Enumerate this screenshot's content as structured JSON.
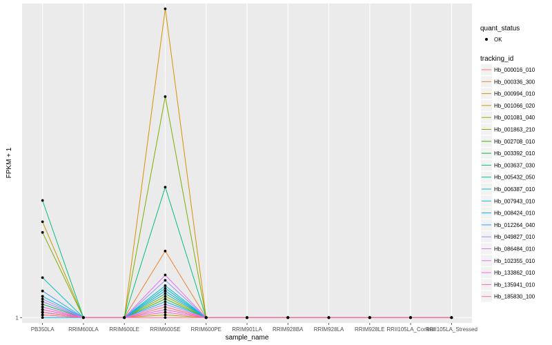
{
  "chart_data": {
    "type": "line",
    "xlabel": "sample_name",
    "ylabel": "FPKM + 1",
    "ylim": [
      0.9,
      6.9
    ],
    "y_ticks": [
      1
    ],
    "y_tick_labels": [
      "1"
    ],
    "grid": true,
    "legend_position": "right",
    "categories": [
      "PB350LA",
      "RRIM600LA",
      "RRIM600LE",
      "RRIM600SE",
      "RRIM600PE",
      "RRIM901LA",
      "RRIM928BA",
      "RRIM928LA",
      "RRIM928LE",
      "RRII105LA_Control",
      "RRII105LA_Stressed"
    ],
    "quant_status": {
      "title": "quant_status",
      "entries": [
        "OK"
      ]
    },
    "tracking_legend_title": "tracking_id",
    "series": [
      {
        "name": "Hb_000016_010",
        "color": "#F8766D",
        "values": [
          1.15,
          1,
          1,
          1.2,
          1,
          1,
          1,
          1,
          1,
          1,
          1
        ]
      },
      {
        "name": "Hb_000336_300",
        "color": "#EA8331",
        "values": [
          1.1,
          1,
          1,
          2.25,
          1,
          1,
          1,
          1,
          1,
          1,
          1
        ]
      },
      {
        "name": "Hb_000994_010",
        "color": "#D89000",
        "values": [
          1.05,
          1,
          1,
          6.8,
          1,
          1,
          1,
          1,
          1,
          1,
          1
        ]
      },
      {
        "name": "Hb_001066_020",
        "color": "#C09B00",
        "values": [
          2.8,
          1,
          1,
          1.05,
          1,
          1,
          1,
          1,
          1,
          1,
          1
        ]
      },
      {
        "name": "Hb_001081_040",
        "color": "#A3A500",
        "values": [
          1.2,
          1,
          1,
          1.4,
          1,
          1,
          1,
          1,
          1,
          1,
          1
        ]
      },
      {
        "name": "Hb_001863_210",
        "color": "#7CAE00",
        "values": [
          2.6,
          1,
          1,
          5.15,
          1,
          1,
          1,
          1,
          1,
          1,
          1
        ]
      },
      {
        "name": "Hb_002708_010",
        "color": "#39B600",
        "values": [
          1.1,
          1,
          1,
          1.35,
          1,
          1,
          1,
          1,
          1,
          1,
          1
        ]
      },
      {
        "name": "Hb_003392_010",
        "color": "#00BB4E",
        "values": [
          1.25,
          1,
          1,
          1.5,
          1,
          1,
          1,
          1,
          1,
          1,
          1
        ]
      },
      {
        "name": "Hb_003637_030",
        "color": "#00BF7D",
        "values": [
          3.2,
          1,
          1,
          3.45,
          1,
          1,
          1,
          1,
          1,
          1,
          1
        ]
      },
      {
        "name": "Hb_005432_050",
        "color": "#00C1A3",
        "values": [
          1.3,
          1,
          1,
          1.45,
          1,
          1,
          1,
          1,
          1,
          1,
          1
        ]
      },
      {
        "name": "Hb_006387_010",
        "color": "#00BFC4",
        "values": [
          1.75,
          1,
          1,
          1.55,
          1,
          1,
          1,
          1,
          1,
          1,
          1
        ]
      },
      {
        "name": "Hb_007943_010",
        "color": "#00BAE0",
        "values": [
          1.4,
          1,
          1,
          1.6,
          1,
          1,
          1,
          1,
          1,
          1,
          1
        ]
      },
      {
        "name": "Hb_008424_010",
        "color": "#00B0F6",
        "values": [
          1.0,
          1,
          1,
          1.3,
          1,
          1,
          1,
          1,
          1,
          1,
          1
        ]
      },
      {
        "name": "Hb_012264_040",
        "color": "#35A2FF",
        "values": [
          1.5,
          1,
          1,
          1.5,
          1,
          1,
          1,
          1,
          1,
          1,
          1
        ]
      },
      {
        "name": "Hb_049827_010",
        "color": "#9590FF",
        "values": [
          1.35,
          1,
          1,
          1.7,
          1,
          1,
          1,
          1,
          1,
          1,
          1
        ]
      },
      {
        "name": "Hb_086484_010",
        "color": "#C77CFF",
        "values": [
          1.3,
          1,
          1,
          1.25,
          1,
          1,
          1,
          1,
          1,
          1,
          1
        ]
      },
      {
        "name": "Hb_102355_010",
        "color": "#E76BF3",
        "values": [
          1.2,
          1,
          1,
          1.8,
          1,
          1,
          1,
          1,
          1,
          1,
          1
        ]
      },
      {
        "name": "Hb_133862_010",
        "color": "#FA62DB",
        "values": [
          1.15,
          1,
          1,
          1.15,
          1,
          1,
          1,
          1,
          1,
          1,
          1
        ]
      },
      {
        "name": "Hb_135941_010",
        "color": "#FF62BC",
        "values": [
          1.1,
          1,
          1,
          1.1,
          1,
          1,
          1,
          1,
          1,
          1,
          1
        ]
      },
      {
        "name": "Hb_185830_100",
        "color": "#FF6C91",
        "values": [
          1.05,
          1,
          1,
          1.0,
          1,
          1,
          1,
          1,
          1,
          1,
          1
        ]
      }
    ]
  }
}
